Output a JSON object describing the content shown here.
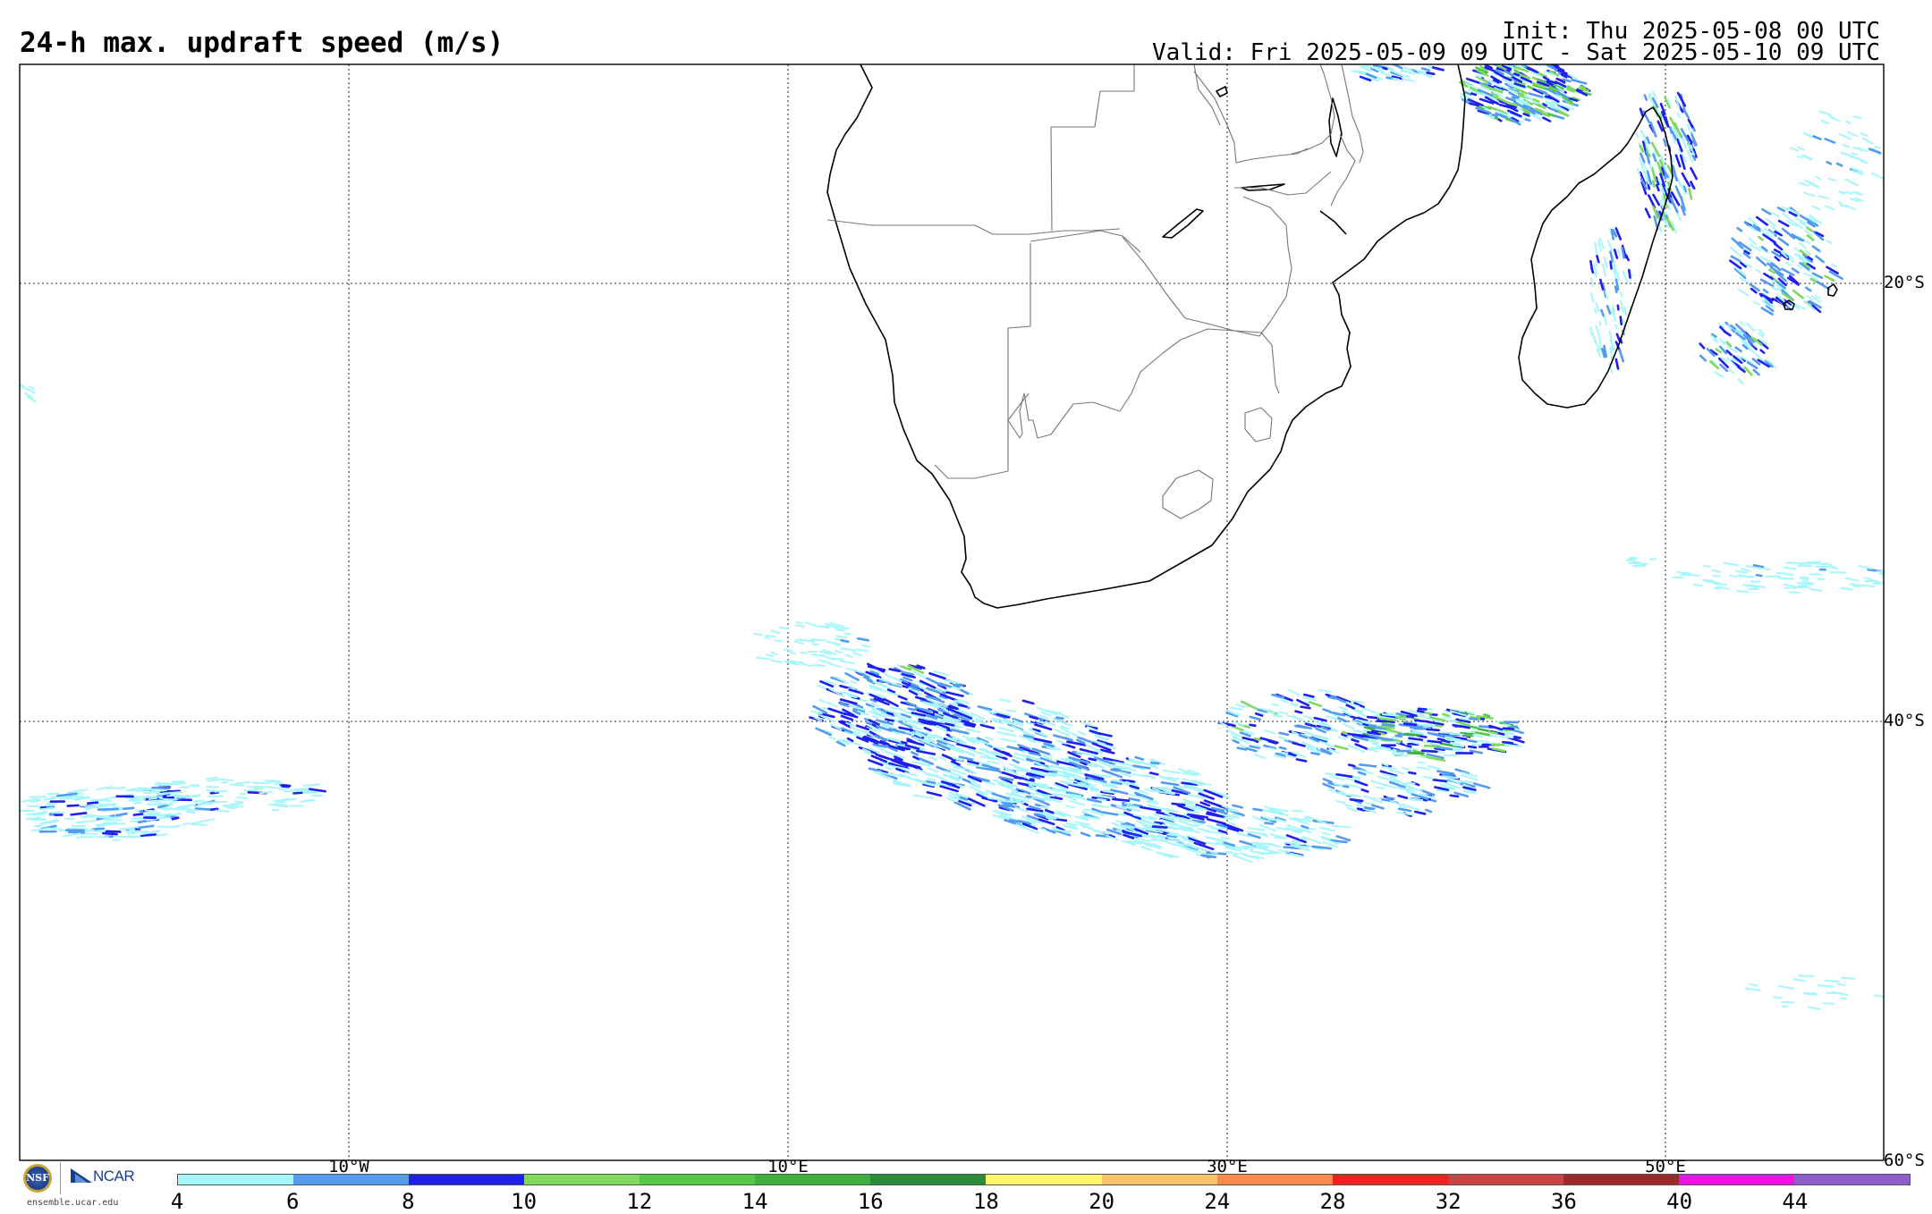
{
  "header": {
    "title": "24-h max. updraft speed (m/s)",
    "init": "Init: Thu 2025-05-08 00 UTC",
    "valid": "Valid: Fri 2025-05-09 09 UTC - Sat 2025-05-10 09 UTC"
  },
  "map": {
    "lon_range": [
      -25,
      60
    ],
    "lat_range": [
      -10,
      -60
    ],
    "lat_labels": [
      "20°S",
      "40°S",
      "60°S"
    ],
    "lon_labels": [
      "10°W",
      "10°E",
      "30°E",
      "50°E"
    ]
  },
  "colorbar": {
    "labels": [
      "4",
      "6",
      "8",
      "10",
      "12",
      "14",
      "16",
      "18",
      "20",
      "24",
      "28",
      "32",
      "36",
      "40",
      "44"
    ],
    "colors": [
      "#a6f6fb",
      "#549bef",
      "#1f1ff0",
      "#7fd95f",
      "#56c848",
      "#3fae3e",
      "#2a8c3a",
      "#fdf66e",
      "#fbc269",
      "#f88a4e",
      "#f0221f",
      "#c84543",
      "#9a2b2c",
      "#ec12e2",
      "#8f5ccb"
    ]
  },
  "logos": {
    "nsf": "NSF",
    "ncar": "NCAR",
    "url": "ensemble.ucar.edu"
  }
}
